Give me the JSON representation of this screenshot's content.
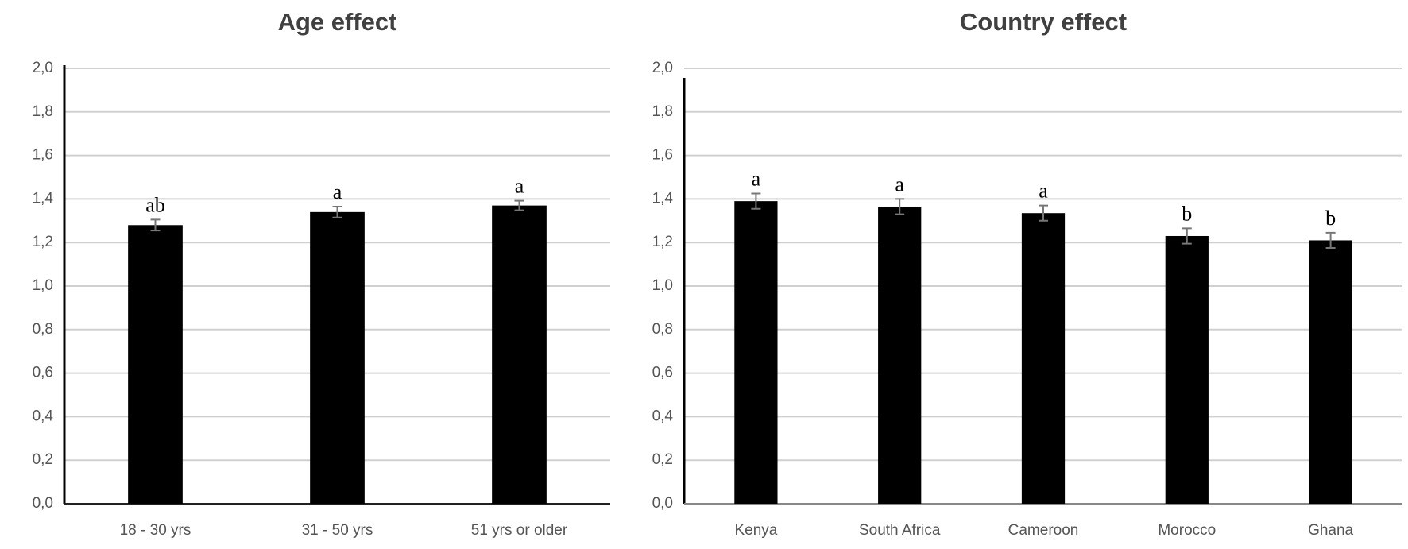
{
  "chart_data": [
    {
      "type": "bar",
      "title": "Age effect",
      "categories": [
        "18 - 30 yrs",
        "31 - 50 yrs",
        "51 yrs or older"
      ],
      "values": [
        1.28,
        1.34,
        1.37
      ],
      "errors": [
        0.025,
        0.025,
        0.022
      ],
      "letters": [
        "ab",
        "a",
        "a"
      ],
      "color": "#000000",
      "ylim": [
        0,
        2
      ],
      "grid": true,
      "yticks": [
        {
          "value": 0,
          "label": "0,0"
        },
        {
          "value": 0.2,
          "label": "0,2"
        },
        {
          "value": 0.4,
          "label": "0,4"
        },
        {
          "value": 0.6,
          "label": "0,6"
        },
        {
          "value": 0.8,
          "label": "0,8"
        },
        {
          "value": 1,
          "label": "1,0"
        },
        {
          "value": 1.2,
          "label": "1,2"
        },
        {
          "value": 1.4,
          "label": "1,4"
        },
        {
          "value": 1.6,
          "label": "1,6"
        },
        {
          "value": 1.8,
          "label": "1,8"
        },
        {
          "value": 2,
          "label": "2,0"
        }
      ]
    },
    {
      "type": "bar",
      "title": "Country effect",
      "categories": [
        "Kenya",
        "South Africa",
        "Cameroon",
        "Morocco",
        "Ghana"
      ],
      "values": [
        1.39,
        1.365,
        1.335,
        1.23,
        1.21
      ],
      "errors": [
        0.035,
        0.035,
        0.035,
        0.035,
        0.035
      ],
      "letters": [
        "a",
        "a",
        "a",
        "b",
        "b"
      ],
      "color": "#000000",
      "ylim": [
        0,
        2
      ],
      "grid": true,
      "yticks": [
        {
          "value": 0,
          "label": "0,0"
        },
        {
          "value": 0.2,
          "label": "0,2"
        },
        {
          "value": 0.4,
          "label": "0,4"
        },
        {
          "value": 0.6,
          "label": "0,6"
        },
        {
          "value": 0.8,
          "label": "0,8"
        },
        {
          "value": 1,
          "label": "1,0"
        },
        {
          "value": 1.2,
          "label": "1,2"
        },
        {
          "value": 1.4,
          "label": "1,4"
        },
        {
          "value": 1.6,
          "label": "1,6"
        },
        {
          "value": 1.8,
          "label": "1,8"
        },
        {
          "value": 2,
          "label": "2,0"
        }
      ]
    }
  ]
}
